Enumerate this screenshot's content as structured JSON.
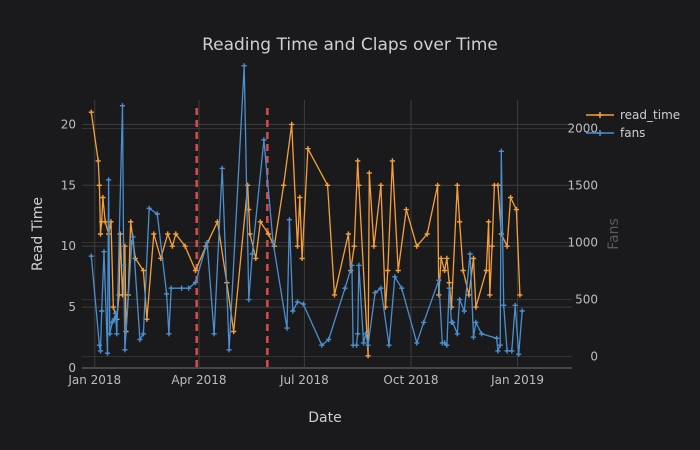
{
  "chart_data": {
    "type": "line",
    "title": "Reading Time and Claps over Time",
    "xlabel": "Date",
    "ylabel": "Read Time",
    "y2label": "Fans",
    "x_ticks": [
      "2018-01-01",
      "2018-04-01",
      "2018-07-01",
      "2018-10-01",
      "2019-01-01"
    ],
    "x_tick_labels": [
      "Jan 2018",
      "Apr 2018",
      "Jul 2018",
      "Oct 2018",
      "Jan 2019"
    ],
    "xlim": [
      "2017-12-21",
      "2019-02-17"
    ],
    "ylim": [
      0,
      22
    ],
    "y_ticks": [
      0,
      5,
      10,
      15,
      20
    ],
    "y2lim": [
      -100,
      2250
    ],
    "y2_ticks": [
      0,
      500,
      1000,
      1500,
      2000
    ],
    "grid": true,
    "legend_position": "top-right",
    "colors": {
      "read_time": "#f5a03a",
      "fans": "#4a8fcf",
      "event_line": "#d94b4b"
    },
    "event_lines": [
      "2018-03-30",
      "2018-05-30"
    ],
    "series": [
      {
        "name": "read_time",
        "axis": "y",
        "points": [
          [
            "2017-12-29",
            21
          ],
          [
            "2018-01-04",
            17
          ],
          [
            "2018-01-05",
            15
          ],
          [
            "2018-01-06",
            11
          ],
          [
            "2018-01-07",
            12
          ],
          [
            "2018-01-08",
            14
          ],
          [
            "2018-01-10",
            12
          ],
          [
            "2018-01-13",
            11
          ],
          [
            "2018-01-15",
            12
          ],
          [
            "2018-01-17",
            5
          ],
          [
            "2018-01-20",
            4
          ],
          [
            "2018-01-22",
            6
          ],
          [
            "2018-01-23",
            11
          ],
          [
            "2018-01-25",
            6
          ],
          [
            "2018-01-27",
            10
          ],
          [
            "2018-01-28",
            3
          ],
          [
            "2018-01-30",
            6
          ],
          [
            "2018-02-01",
            12
          ],
          [
            "2018-02-05",
            9
          ],
          [
            "2018-02-12",
            8
          ],
          [
            "2018-02-15",
            4
          ],
          [
            "2018-02-21",
            11
          ],
          [
            "2018-02-27",
            9
          ],
          [
            "2018-03-05",
            11
          ],
          [
            "2018-03-09",
            10
          ],
          [
            "2018-03-12",
            11
          ],
          [
            "2018-03-20",
            10
          ],
          [
            "2018-03-29",
            8
          ],
          [
            "2018-04-07",
            10
          ],
          [
            "2018-04-17",
            12
          ],
          [
            "2018-04-25",
            7
          ],
          [
            "2018-05-01",
            3
          ],
          [
            "2018-05-13",
            15
          ],
          [
            "2018-05-14",
            13
          ],
          [
            "2018-05-15",
            11
          ],
          [
            "2018-05-20",
            9
          ],
          [
            "2018-05-24",
            12
          ],
          [
            "2018-05-31",
            11
          ],
          [
            "2018-06-05",
            10
          ],
          [
            "2018-06-13",
            15
          ],
          [
            "2018-06-20",
            20
          ],
          [
            "2018-06-25",
            10
          ],
          [
            "2018-06-27",
            14
          ],
          [
            "2018-06-29",
            9
          ],
          [
            "2018-07-04",
            18
          ],
          [
            "2018-07-21",
            15
          ],
          [
            "2018-07-27",
            6
          ],
          [
            "2018-08-08",
            11
          ],
          [
            "2018-08-10",
            8
          ],
          [
            "2018-08-13",
            10
          ],
          [
            "2018-08-16",
            17
          ],
          [
            "2018-08-17",
            15
          ],
          [
            "2018-08-25",
            1
          ],
          [
            "2018-08-26",
            16
          ],
          [
            "2018-08-30",
            10
          ],
          [
            "2018-09-05",
            15
          ],
          [
            "2018-09-09",
            5
          ],
          [
            "2018-09-11",
            8
          ],
          [
            "2018-09-15",
            17
          ],
          [
            "2018-09-20",
            8
          ],
          [
            "2018-09-27",
            13
          ],
          [
            "2018-10-06",
            10
          ],
          [
            "2018-10-15",
            11
          ],
          [
            "2018-10-24",
            15
          ],
          [
            "2018-10-25",
            6
          ],
          [
            "2018-10-27",
            9
          ],
          [
            "2018-10-30",
            8
          ],
          [
            "2018-11-01",
            9
          ],
          [
            "2018-11-03",
            7
          ],
          [
            "2018-11-05",
            5
          ],
          [
            "2018-11-10",
            15
          ],
          [
            "2018-11-12",
            12
          ],
          [
            "2018-11-15",
            8
          ],
          [
            "2018-11-20",
            6
          ],
          [
            "2018-11-24",
            9
          ],
          [
            "2018-11-26",
            5
          ],
          [
            "2018-12-05",
            8
          ],
          [
            "2018-12-07",
            12
          ],
          [
            "2018-12-08",
            6
          ],
          [
            "2018-12-10",
            10
          ],
          [
            "2018-12-12",
            15
          ],
          [
            "2018-12-15",
            15
          ],
          [
            "2018-12-18",
            11
          ],
          [
            "2018-12-23",
            10
          ],
          [
            "2018-12-26",
            14
          ],
          [
            "2018-12-31",
            13
          ],
          [
            "2019-01-03",
            6
          ]
        ]
      },
      {
        "name": "fans",
        "axis": "y2",
        "points": [
          [
            "2017-12-29",
            880
          ],
          [
            "2018-01-05",
            100
          ],
          [
            "2018-01-06",
            50
          ],
          [
            "2018-01-07",
            400
          ],
          [
            "2018-01-09",
            920
          ],
          [
            "2018-01-12",
            30
          ],
          [
            "2018-01-13",
            1550
          ],
          [
            "2018-01-14",
            200
          ],
          [
            "2018-01-16",
            300
          ],
          [
            "2018-01-18",
            330
          ],
          [
            "2018-01-19",
            380
          ],
          [
            "2018-01-20",
            200
          ],
          [
            "2018-01-25",
            2200
          ],
          [
            "2018-01-26",
            800
          ],
          [
            "2018-01-27",
            60
          ],
          [
            "2018-02-02",
            1000
          ],
          [
            "2018-02-03",
            1050
          ],
          [
            "2018-02-09",
            150
          ],
          [
            "2018-02-12",
            200
          ],
          [
            "2018-02-17",
            1300
          ],
          [
            "2018-02-24",
            1250
          ],
          [
            "2018-03-04",
            550
          ],
          [
            "2018-03-06",
            200
          ],
          [
            "2018-03-08",
            600
          ],
          [
            "2018-03-17",
            600
          ],
          [
            "2018-03-23",
            600
          ],
          [
            "2018-03-29",
            650
          ],
          [
            "2018-04-08",
            1000
          ],
          [
            "2018-04-14",
            200
          ],
          [
            "2018-04-21",
            1650
          ],
          [
            "2018-04-27",
            60
          ],
          [
            "2018-05-10",
            2550
          ],
          [
            "2018-05-14",
            500
          ],
          [
            "2018-05-17",
            900
          ],
          [
            "2018-05-27",
            1900
          ],
          [
            "2018-06-04",
            1000
          ],
          [
            "2018-06-16",
            250
          ],
          [
            "2018-06-18",
            1200
          ],
          [
            "2018-06-21",
            400
          ],
          [
            "2018-06-25",
            480
          ],
          [
            "2018-06-30",
            460
          ],
          [
            "2018-07-16",
            100
          ],
          [
            "2018-07-22",
            150
          ],
          [
            "2018-08-05",
            600
          ],
          [
            "2018-08-11",
            800
          ],
          [
            "2018-08-12",
            100
          ],
          [
            "2018-08-15",
            100
          ],
          [
            "2018-08-16",
            200
          ],
          [
            "2018-08-17",
            800
          ],
          [
            "2018-08-21",
            120
          ],
          [
            "2018-08-23",
            200
          ],
          [
            "2018-08-25",
            100
          ],
          [
            "2018-08-31",
            560
          ],
          [
            "2018-09-05",
            600
          ],
          [
            "2018-09-12",
            100
          ],
          [
            "2018-09-17",
            700
          ],
          [
            "2018-09-23",
            600
          ],
          [
            "2018-10-06",
            120
          ],
          [
            "2018-10-12",
            300
          ],
          [
            "2018-10-25",
            670
          ],
          [
            "2018-10-28",
            120
          ],
          [
            "2018-10-30",
            120
          ],
          [
            "2018-11-01",
            100
          ],
          [
            "2018-11-03",
            600
          ],
          [
            "2018-11-05",
            300
          ],
          [
            "2018-11-06",
            300
          ],
          [
            "2018-11-10",
            200
          ],
          [
            "2018-11-12",
            500
          ],
          [
            "2018-11-16",
            400
          ],
          [
            "2018-11-21",
            900
          ],
          [
            "2018-11-24",
            170
          ],
          [
            "2018-11-26",
            300
          ],
          [
            "2018-12-01",
            200
          ],
          [
            "2018-12-14",
            160
          ],
          [
            "2018-12-15",
            50
          ],
          [
            "2018-12-17",
            100
          ],
          [
            "2018-12-18",
            1800
          ],
          [
            "2018-12-20",
            450
          ],
          [
            "2018-12-23",
            50
          ],
          [
            "2018-12-27",
            50
          ],
          [
            "2018-12-30",
            450
          ],
          [
            "2019-01-02",
            20
          ],
          [
            "2019-01-05",
            400
          ]
        ]
      }
    ]
  }
}
